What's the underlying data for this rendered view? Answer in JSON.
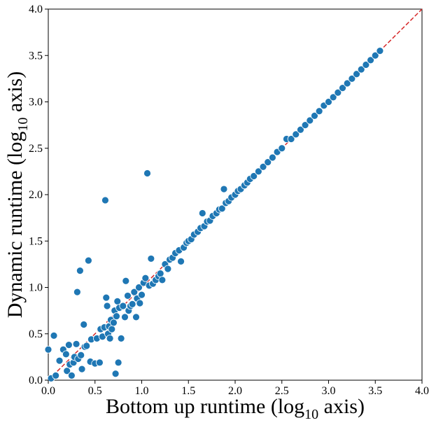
{
  "chart_data": {
    "type": "scatter",
    "xlabel": {
      "before": "Bottom up runtime (log",
      "sub": "10",
      "after": " axis)"
    },
    "ylabel": {
      "before": "Dynamic runtime (log",
      "sub": "10",
      "after": " axis)"
    },
    "xlim": [
      0.0,
      4.0
    ],
    "ylim": [
      0.0,
      4.0
    ],
    "xticks": [
      "0.0",
      "0.5",
      "1.0",
      "1.5",
      "2.0",
      "2.5",
      "3.0",
      "3.5",
      "4.0"
    ],
    "yticks": [
      "0.0",
      "0.5",
      "1.0",
      "1.5",
      "2.0",
      "2.5",
      "3.0",
      "3.5",
      "4.0"
    ],
    "grid": false,
    "reference_line": {
      "from": [
        0.0,
        0.0
      ],
      "to": [
        4.0,
        4.0
      ],
      "style": "dashed"
    },
    "colors": {
      "points": "#1f77b4",
      "point_edge": "#ffffff",
      "reference_line": "#d62728",
      "axes": "#000000"
    },
    "points": [
      [
        0.0,
        0.33
      ],
      [
        0.06,
        0.48
      ],
      [
        0.03,
        0.02
      ],
      [
        0.08,
        0.05
      ],
      [
        0.12,
        0.21
      ],
      [
        0.16,
        0.33
      ],
      [
        0.19,
        0.28
      ],
      [
        0.2,
        0.1
      ],
      [
        0.22,
        0.38
      ],
      [
        0.23,
        0.17
      ],
      [
        0.25,
        0.05
      ],
      [
        0.27,
        0.19
      ],
      [
        0.28,
        0.25
      ],
      [
        0.3,
        0.39
      ],
      [
        0.31,
        0.95
      ],
      [
        0.32,
        0.23
      ],
      [
        0.34,
        1.18
      ],
      [
        0.35,
        0.27
      ],
      [
        0.36,
        0.12
      ],
      [
        0.38,
        0.6
      ],
      [
        0.39,
        0.36
      ],
      [
        0.41,
        0.37
      ],
      [
        0.43,
        1.29
      ],
      [
        0.45,
        0.2
      ],
      [
        0.46,
        0.44
      ],
      [
        0.5,
        0.18
      ],
      [
        0.52,
        0.45
      ],
      [
        0.55,
        0.19
      ],
      [
        0.56,
        0.55
      ],
      [
        0.58,
        0.47
      ],
      [
        0.6,
        0.57
      ],
      [
        0.61,
        1.94
      ],
      [
        0.62,
        0.89
      ],
      [
        0.63,
        0.8
      ],
      [
        0.64,
        0.5
      ],
      [
        0.65,
        0.58
      ],
      [
        0.66,
        0.45
      ],
      [
        0.67,
        0.65
      ],
      [
        0.68,
        0.55
      ],
      [
        0.7,
        0.62
      ],
      [
        0.71,
        0.75
      ],
      [
        0.72,
        0.07
      ],
      [
        0.73,
        0.69
      ],
      [
        0.74,
        0.85
      ],
      [
        0.75,
        0.19
      ],
      [
        0.76,
        0.78
      ],
      [
        0.78,
        0.45
      ],
      [
        0.8,
        0.8
      ],
      [
        0.82,
        0.68
      ],
      [
        0.83,
        1.07
      ],
      [
        0.85,
        0.91
      ],
      [
        0.86,
        0.75
      ],
      [
        0.88,
        0.8
      ],
      [
        0.9,
        0.82
      ],
      [
        0.92,
        0.95
      ],
      [
        0.94,
        0.68
      ],
      [
        0.95,
        0.88
      ],
      [
        0.97,
        1.0
      ],
      [
        0.98,
        0.83
      ],
      [
        1.0,
        0.92
      ],
      [
        1.02,
        1.05
      ],
      [
        1.04,
        1.1
      ],
      [
        1.06,
        2.23
      ],
      [
        1.08,
        1.02
      ],
      [
        1.1,
        1.31
      ],
      [
        1.12,
        1.04
      ],
      [
        1.15,
        1.08
      ],
      [
        1.18,
        1.12
      ],
      [
        1.2,
        1.15
      ],
      [
        1.22,
        1.08
      ],
      [
        1.25,
        1.25
      ],
      [
        1.28,
        1.2
      ],
      [
        1.3,
        1.3
      ],
      [
        1.33,
        1.32
      ],
      [
        1.36,
        1.37
      ],
      [
        1.4,
        1.4
      ],
      [
        1.42,
        1.28
      ],
      [
        1.45,
        1.43
      ],
      [
        1.48,
        1.48
      ],
      [
        1.5,
        1.5
      ],
      [
        1.53,
        1.52
      ],
      [
        1.56,
        1.57
      ],
      [
        1.6,
        1.6
      ],
      [
        1.63,
        1.64
      ],
      [
        1.65,
        1.8
      ],
      [
        1.67,
        1.66
      ],
      [
        1.7,
        1.71
      ],
      [
        1.73,
        1.72
      ],
      [
        1.76,
        1.77
      ],
      [
        1.8,
        1.8
      ],
      [
        1.83,
        1.84
      ],
      [
        1.86,
        1.85
      ],
      [
        1.88,
        2.06
      ],
      [
        1.9,
        1.91
      ],
      [
        1.93,
        1.93
      ],
      [
        1.96,
        1.97
      ],
      [
        2.0,
        2.0
      ],
      [
        2.03,
        2.04
      ],
      [
        2.06,
        2.06
      ],
      [
        2.1,
        2.1
      ],
      [
        2.13,
        2.13
      ],
      [
        2.16,
        2.17
      ],
      [
        2.2,
        2.2
      ],
      [
        2.25,
        2.25
      ],
      [
        2.3,
        2.3
      ],
      [
        2.35,
        2.35
      ],
      [
        2.4,
        2.4
      ],
      [
        2.45,
        2.46
      ],
      [
        2.5,
        2.5
      ],
      [
        2.55,
        2.6
      ],
      [
        2.6,
        2.6
      ],
      [
        2.65,
        2.65
      ],
      [
        2.7,
        2.7
      ],
      [
        2.75,
        2.75
      ],
      [
        2.8,
        2.8
      ],
      [
        2.85,
        2.85
      ],
      [
        2.9,
        2.9
      ],
      [
        2.95,
        2.96
      ],
      [
        3.0,
        3.0
      ],
      [
        3.05,
        3.05
      ],
      [
        3.1,
        3.1
      ],
      [
        3.15,
        3.15
      ],
      [
        3.2,
        3.2
      ],
      [
        3.25,
        3.25
      ],
      [
        3.3,
        3.3
      ],
      [
        3.35,
        3.35
      ],
      [
        3.4,
        3.4
      ],
      [
        3.45,
        3.45
      ],
      [
        3.5,
        3.5
      ],
      [
        3.55,
        3.55
      ]
    ]
  }
}
